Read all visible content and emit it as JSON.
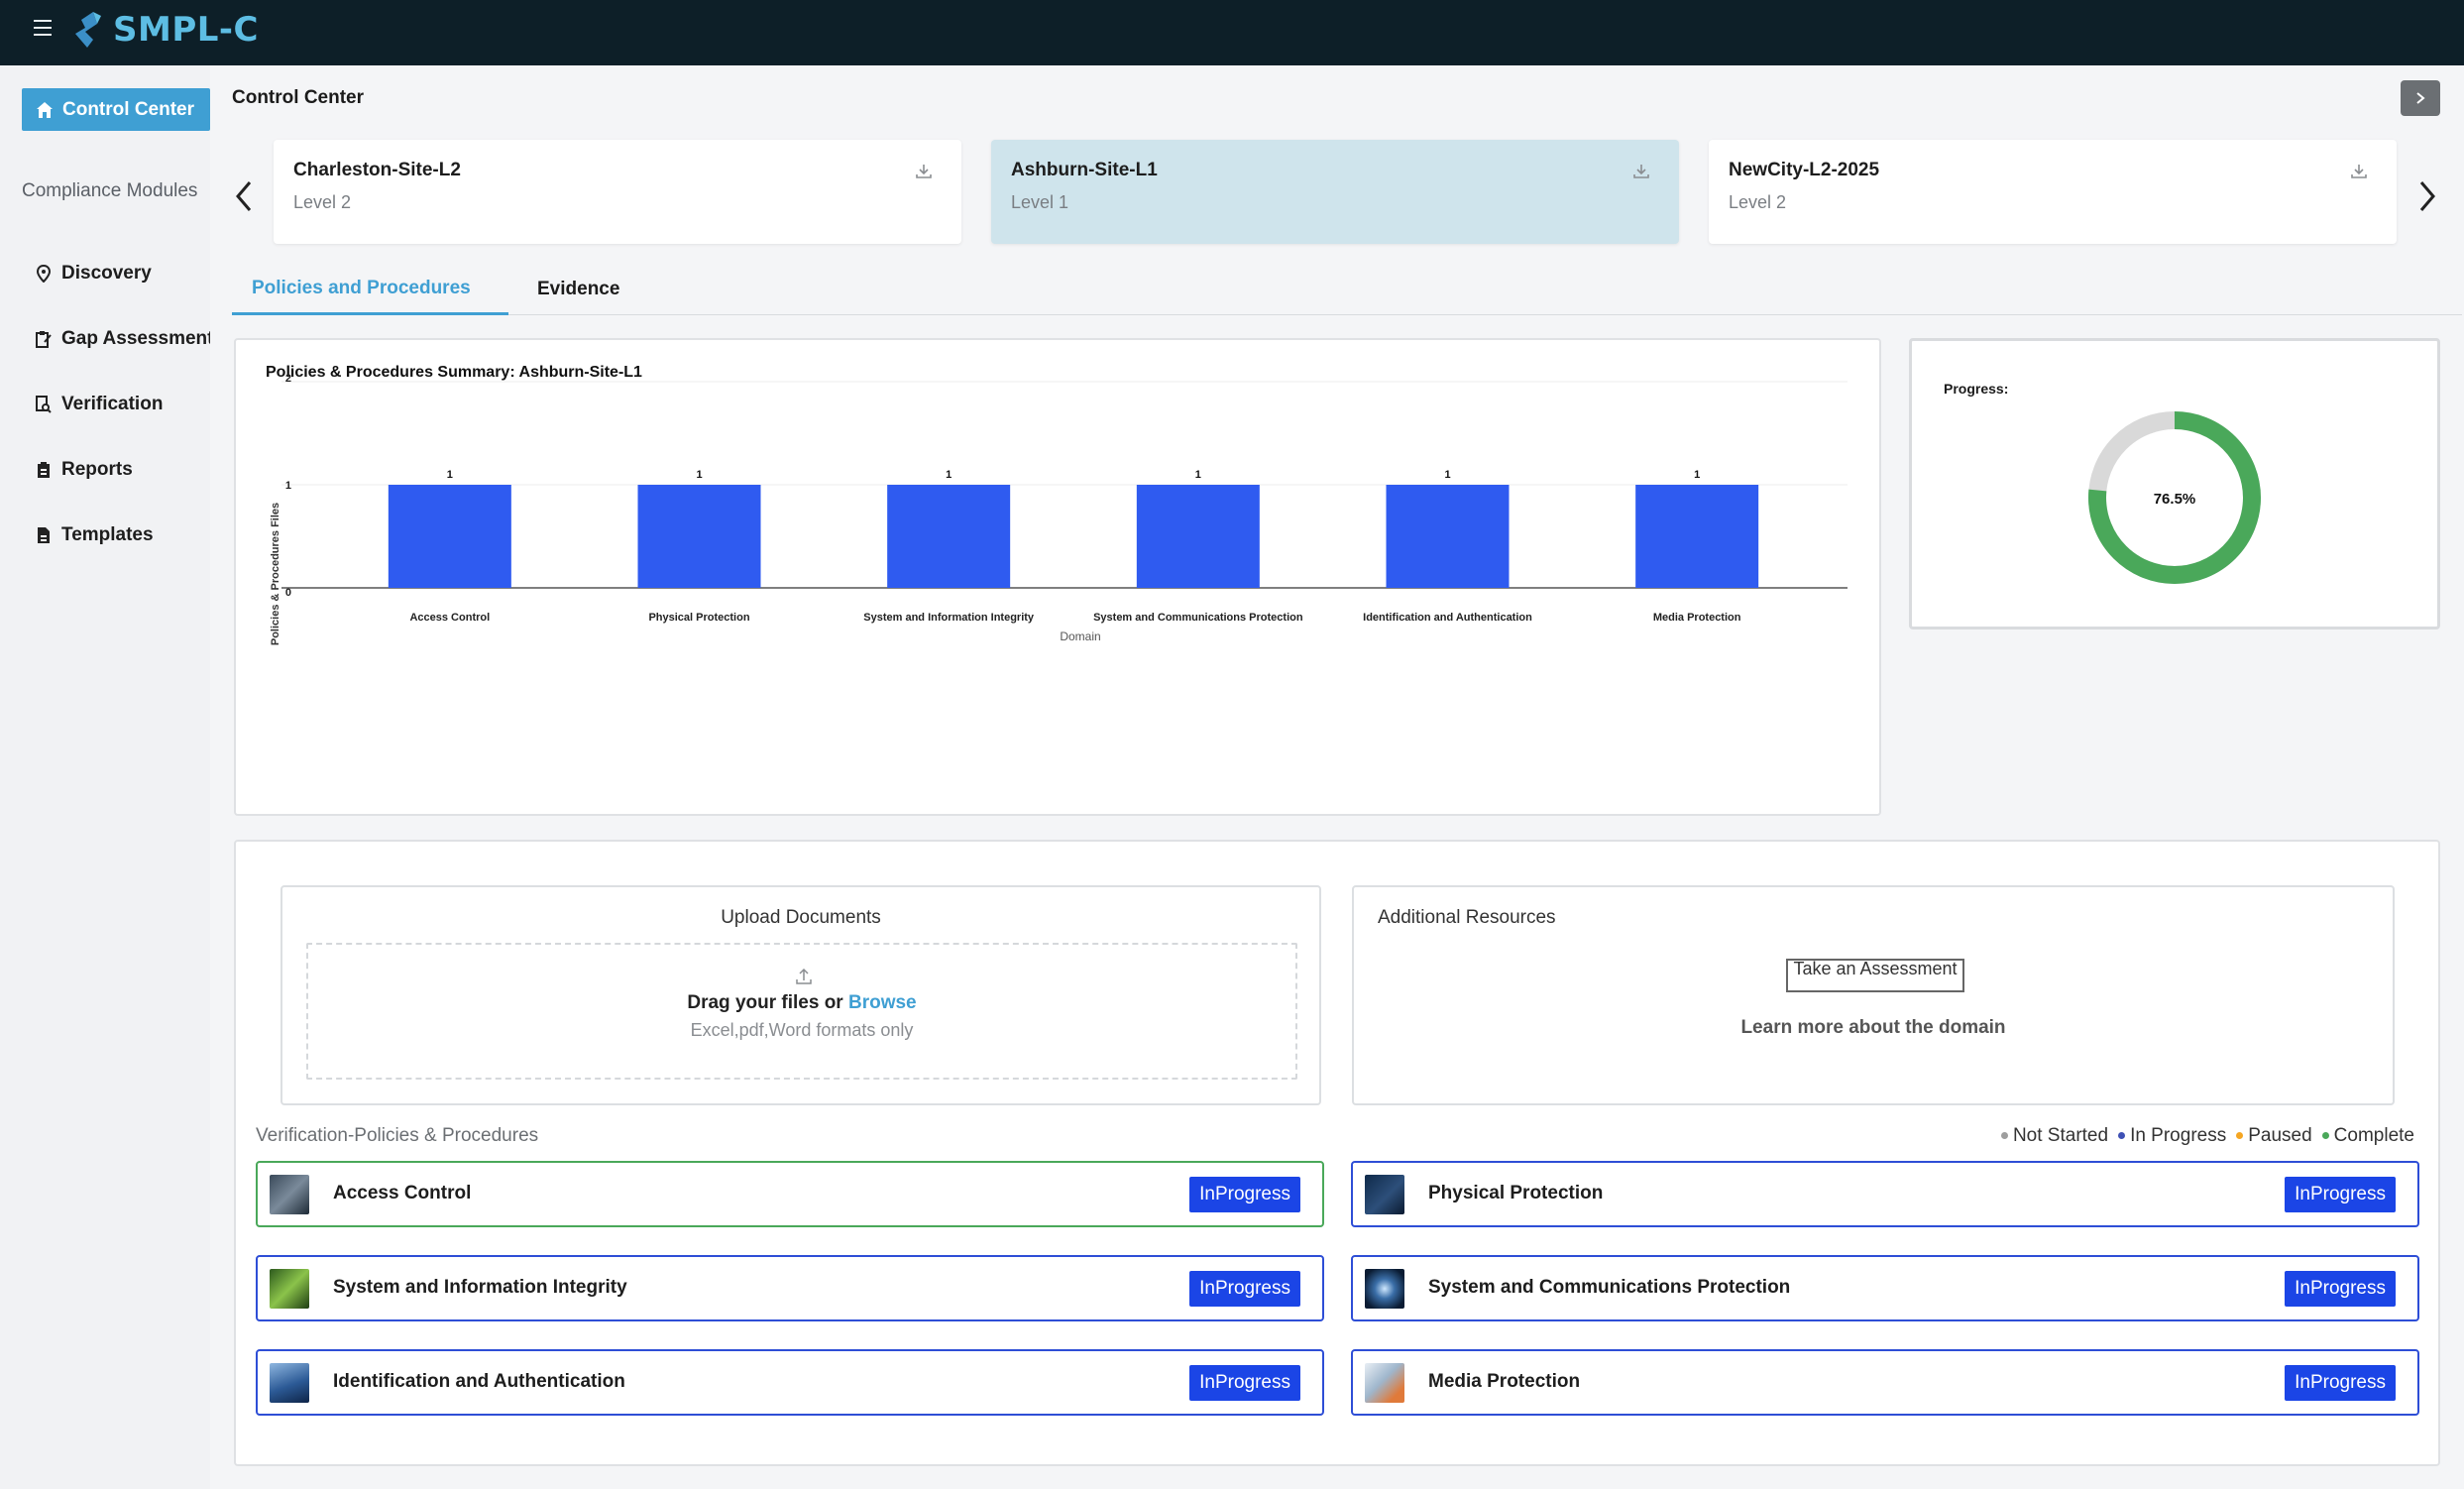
{
  "app": {
    "name": "SMPL-C",
    "brand_color": "#5dbde3",
    "topbar_color": "#0d1f28"
  },
  "sidebar": {
    "active_button": "Control Center",
    "section_label": "Compliance Modules",
    "items": [
      {
        "label": "Discovery",
        "icon": "map-pin-icon"
      },
      {
        "label": "Gap Assessment",
        "icon": "clipboard-edit-icon"
      },
      {
        "label": "Verification",
        "icon": "document-search-icon"
      },
      {
        "label": "Reports",
        "icon": "clipboard-list-icon"
      },
      {
        "label": "Templates",
        "icon": "file-icon"
      }
    ]
  },
  "page": {
    "title": "Control Center"
  },
  "sites": [
    {
      "name": "Charleston-Site-L2",
      "level": "Level 2",
      "active": false
    },
    {
      "name": "Ashburn-Site-L1",
      "level": "Level 1",
      "active": true
    },
    {
      "name": "NewCity-L2-2025",
      "level": "Level 2",
      "active": false
    }
  ],
  "tabs": [
    {
      "label": "Policies and Procedures",
      "active": true
    },
    {
      "label": "Evidence",
      "active": false
    }
  ],
  "chart_data": {
    "type": "bar",
    "title": "Policies & Procedures Summary: Ashburn-Site-L1",
    "xlabel": "Domain",
    "ylabel": "Policies & Procedures Files",
    "categories": [
      "Access Control",
      "Physical Protection",
      "System and Information Integrity",
      "System and Communications Protection",
      "Identification and Authentication",
      "Media Protection"
    ],
    "values": [
      1,
      1,
      1,
      1,
      1,
      1
    ],
    "ylim": [
      0,
      2
    ],
    "yticks": [
      0,
      1,
      2
    ],
    "bar_color": "#2f5bf0",
    "data_labels": true,
    "grid": true
  },
  "progress": {
    "label": "Progress:",
    "value_text": "76.5%",
    "fraction": 0.765,
    "color_complete": "#4aa85a",
    "color_remaining": "#d9d9d9"
  },
  "upload": {
    "title": "Upload Documents",
    "drag_text": "Drag your files or",
    "browse_label": "Browse",
    "formats": "Excel,pdf,Word formats only"
  },
  "resources": {
    "title": "Additional Resources",
    "assessment_button": "Take an Assessment",
    "learn_more": "Learn more about the domain"
  },
  "verification": {
    "title": "Verification-Policies & Procedures",
    "legend": [
      {
        "label": "Not Started",
        "color": "#9e9e9e"
      },
      {
        "label": "In Progress",
        "color": "#3f51b5"
      },
      {
        "label": "Paused",
        "color": "#f5a623"
      },
      {
        "label": "Complete",
        "color": "#4aa85a"
      }
    ],
    "domains": [
      {
        "name": "Access Control",
        "status": "InProgress"
      },
      {
        "name": "Physical Protection",
        "status": "InProgress"
      },
      {
        "name": "System and Information Integrity",
        "status": "InProgress"
      },
      {
        "name": "System and Communications Protection",
        "status": "InProgress"
      },
      {
        "name": "Identification and Authentication",
        "status": "InProgress"
      },
      {
        "name": "Media Protection",
        "status": "InProgress"
      }
    ]
  }
}
